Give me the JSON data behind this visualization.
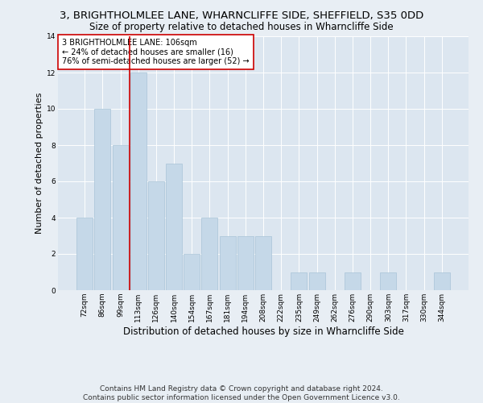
{
  "title": "3, BRIGHTHOLMLEE LANE, WHARNCLIFFE SIDE, SHEFFIELD, S35 0DD",
  "subtitle": "Size of property relative to detached houses in Wharncliffe Side",
  "xlabel": "Distribution of detached houses by size in Wharncliffe Side",
  "ylabel": "Number of detached properties",
  "categories": [
    "72sqm",
    "86sqm",
    "99sqm",
    "113sqm",
    "126sqm",
    "140sqm",
    "154sqm",
    "167sqm",
    "181sqm",
    "194sqm",
    "208sqm",
    "222sqm",
    "235sqm",
    "249sqm",
    "262sqm",
    "276sqm",
    "290sqm",
    "303sqm",
    "317sqm",
    "330sqm",
    "344sqm"
  ],
  "values": [
    4,
    10,
    8,
    12,
    6,
    7,
    2,
    4,
    3,
    3,
    3,
    0,
    1,
    1,
    0,
    1,
    0,
    1,
    0,
    0,
    1
  ],
  "bar_color": "#c5d8e8",
  "bar_edge_color": "#a8c4d8",
  "vline_color": "#cc0000",
  "vline_x_index": 2.5,
  "annotation_text": "3 BRIGHTHOLMLEE LANE: 106sqm\n← 24% of detached houses are smaller (16)\n76% of semi-detached houses are larger (52) →",
  "annotation_box_color": "#ffffff",
  "annotation_box_edge_color": "#cc0000",
  "ylim": [
    0,
    14
  ],
  "yticks": [
    0,
    2,
    4,
    6,
    8,
    10,
    12,
    14
  ],
  "background_color": "#e8eef4",
  "plot_background_color": "#dce6f0",
  "grid_color": "#ffffff",
  "footer": "Contains HM Land Registry data © Crown copyright and database right 2024.\nContains public sector information licensed under the Open Government Licence v3.0.",
  "title_fontsize": 9.5,
  "subtitle_fontsize": 8.5,
  "xlabel_fontsize": 8.5,
  "ylabel_fontsize": 8,
  "tick_fontsize": 6.5,
  "annotation_fontsize": 7,
  "footer_fontsize": 6.5
}
